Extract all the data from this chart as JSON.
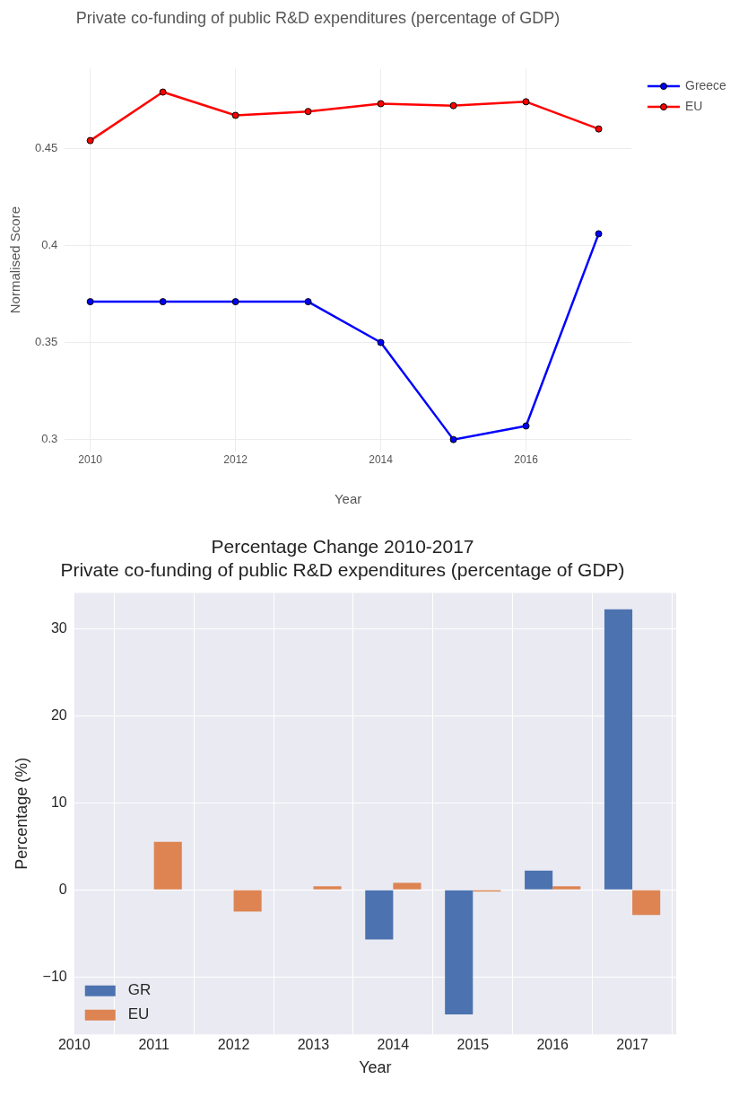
{
  "chart_data": [
    {
      "type": "line",
      "title": "Private co-funding of public R&D expenditures (percentage of GDP)",
      "xlabel": "Year",
      "ylabel": "Normalised Score",
      "x": [
        2010,
        2011,
        2012,
        2013,
        2014,
        2015,
        2016,
        2017
      ],
      "series": [
        {
          "name": "Greece",
          "color": "#0000ff",
          "values": [
            0.371,
            0.371,
            0.371,
            0.371,
            0.35,
            0.3,
            0.307,
            0.406
          ]
        },
        {
          "name": "EU",
          "color": "#ff0000",
          "values": [
            0.454,
            0.479,
            0.467,
            0.469,
            0.473,
            0.472,
            0.474,
            0.46
          ]
        }
      ],
      "xlim": [
        2009.65,
        2017.45
      ],
      "xticks": [
        2010,
        2012,
        2014,
        2016
      ],
      "ylim": [
        0.294,
        0.491
      ],
      "yticks": [
        0.3,
        0.35,
        0.4,
        0.45
      ],
      "grid": true,
      "legend": "top right",
      "marker": "circle",
      "line_style": "solid"
    },
    {
      "type": "bar",
      "title": "Percentage Change 2010-2017",
      "subtitle": "Private co-funding of public R&D expenditures (percentage of GDP)",
      "xlabel": "Year",
      "ylabel": "Percentage (%)",
      "x": [
        2010,
        2011,
        2012,
        2013,
        2014,
        2015,
        2016,
        2017
      ],
      "series": [
        {
          "name": "GR",
          "color": "#4c72b0",
          "values": [
            0,
            0,
            0,
            0,
            -5.7,
            -14.3,
            2.2,
            32.2
          ]
        },
        {
          "name": "EU",
          "color": "#dd8452",
          "values": [
            0,
            5.5,
            -2.5,
            0.4,
            0.8,
            -0.2,
            0.4,
            -2.9
          ]
        }
      ],
      "xlim": [
        2010,
        2017.55
      ],
      "xticks": [
        2010,
        2011,
        2012,
        2013,
        2014,
        2015,
        2016,
        2017
      ],
      "ylim": [
        -16.6,
        34.1
      ],
      "yticks": [
        {
          "value": -10,
          "label": "−10"
        },
        0,
        10,
        20,
        30
      ],
      "grid": true,
      "legend": "bottom left"
    }
  ]
}
